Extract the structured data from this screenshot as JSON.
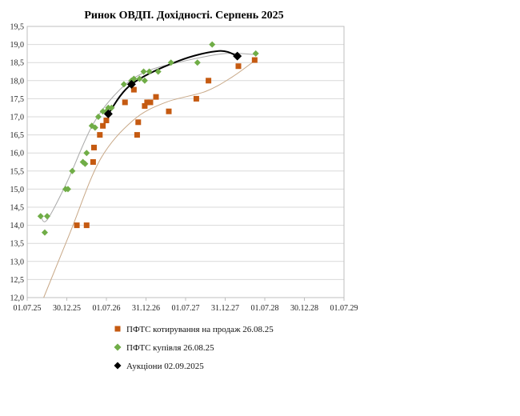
{
  "chart_data": {
    "type": "scatter",
    "title": "Ринок ОВДП. Дохідності.  Серпень 2025",
    "xlabel": "",
    "ylabel": "",
    "x_ticks": [
      "01.07.25",
      "30.12.25",
      "01.07.26",
      "31.12.26",
      "01.07.27",
      "31.12.27",
      "01.07.28",
      "30.12.28",
      "01.07.29"
    ],
    "x_range": [
      "2025-07-01",
      "2029-07-01"
    ],
    "ylim": [
      12.0,
      19.5
    ],
    "y_ticks": [
      "12,0",
      "12,5",
      "13,0",
      "13,5",
      "14,0",
      "14,5",
      "15,0",
      "15,5",
      "16,0",
      "16,5",
      "17,0",
      "17,5",
      "18,0",
      "18,5",
      "19,0",
      "19,5"
    ],
    "grid": "horizontal",
    "legend_position": "bottom",
    "series": [
      {
        "name": "ПФТС котирування на продаж 26.08.25",
        "marker": "square",
        "color": "#c55a11",
        "points": [
          [
            "2026-02-15",
            14.0
          ],
          [
            "2026-04-01",
            14.0
          ],
          [
            "2026-05-01",
            15.75
          ],
          [
            "2026-05-05",
            16.15
          ],
          [
            "2026-06-01",
            16.5
          ],
          [
            "2026-06-15",
            16.75
          ],
          [
            "2026-07-01",
            16.9
          ],
          [
            "2026-09-25",
            17.4
          ],
          [
            "2026-11-05",
            17.75
          ],
          [
            "2026-11-20",
            16.5
          ],
          [
            "2026-11-25",
            16.85
          ],
          [
            "2026-12-25",
            17.3
          ],
          [
            "2027-01-05",
            17.4
          ],
          [
            "2027-01-20",
            17.4
          ],
          [
            "2027-02-15",
            17.55
          ],
          [
            "2027-04-15",
            17.15
          ],
          [
            "2027-08-20",
            17.5
          ],
          [
            "2027-10-15",
            18.0
          ],
          [
            "2028-03-01",
            18.4
          ],
          [
            "2028-05-15",
            18.57
          ]
        ]
      },
      {
        "name": "ПФТС купівля 26.08.25",
        "marker": "diamond",
        "color": "#70ad47",
        "points": [
          [
            "2025-09-01",
            14.25
          ],
          [
            "2025-09-20",
            13.8
          ],
          [
            "2025-10-01",
            14.25
          ],
          [
            "2025-12-25",
            15.0
          ],
          [
            "2026-01-05",
            15.0
          ],
          [
            "2026-01-25",
            15.5
          ],
          [
            "2026-03-15",
            15.75
          ],
          [
            "2026-03-25",
            15.7
          ],
          [
            "2026-04-01",
            16.0
          ],
          [
            "2026-04-25",
            16.75
          ],
          [
            "2026-05-10",
            16.7
          ],
          [
            "2026-05-25",
            17.0
          ],
          [
            "2026-06-15",
            17.15
          ],
          [
            "2026-07-01",
            17.15
          ],
          [
            "2026-07-10",
            17.25
          ],
          [
            "2026-07-25",
            17.25
          ],
          [
            "2026-09-20",
            17.9
          ],
          [
            "2026-10-25",
            18.0
          ],
          [
            "2026-11-05",
            18.05
          ],
          [
            "2026-12-01",
            18.05
          ],
          [
            "2026-12-20",
            18.25
          ],
          [
            "2026-12-25",
            18.0
          ],
          [
            "2027-01-15",
            18.25
          ],
          [
            "2027-02-25",
            18.25
          ],
          [
            "2027-04-25",
            18.5
          ],
          [
            "2027-08-25",
            18.5
          ],
          [
            "2027-11-01",
            19.0
          ],
          [
            "2028-05-20",
            18.75
          ]
        ]
      },
      {
        "name": "Аукціони 02.09.2025",
        "marker": "diamond",
        "color": "#000000",
        "points": [
          [
            "2026-07-10",
            17.08
          ],
          [
            "2026-10-25",
            17.9
          ],
          [
            "2028-02-25",
            18.68
          ]
        ]
      }
    ]
  }
}
